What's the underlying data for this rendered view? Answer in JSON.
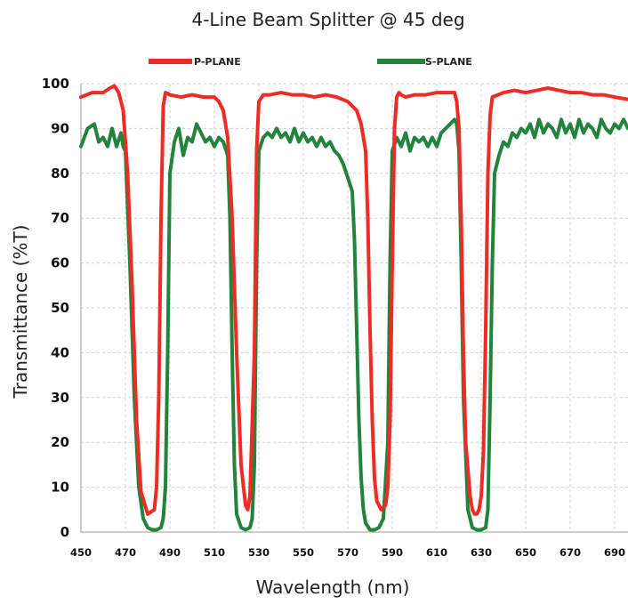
{
  "chart_data": {
    "type": "line",
    "title": "4-Line Beam Splitter @ 45 deg",
    "xlabel": "Wavelength (nm)",
    "ylabel": "Transmittance (%T)",
    "xlim": [
      450,
      696
    ],
    "ylim": [
      0,
      100
    ],
    "x_ticks": [
      450,
      470,
      490,
      510,
      530,
      550,
      570,
      590,
      610,
      630,
      650,
      670,
      690
    ],
    "y_ticks": [
      0,
      10,
      20,
      30,
      40,
      50,
      60,
      70,
      80,
      90,
      100
    ],
    "grid": true,
    "legend_position": "top",
    "series": [
      {
        "name": "P-PLANE",
        "color": "#ee2b24",
        "x": [
          450,
          455,
          460,
          463,
          465,
          467,
          469,
          471,
          473,
          475,
          477,
          480,
          483,
          484,
          485,
          486,
          487,
          488,
          490,
          495,
          500,
          505,
          510,
          512,
          514,
          516,
          518,
          520,
          522,
          524,
          525,
          526,
          528,
          529,
          530,
          532,
          535,
          540,
          545,
          550,
          555,
          560,
          565,
          570,
          574,
          576,
          578,
          579,
          580,
          581,
          582,
          583,
          585,
          587,
          588,
          589,
          590,
          591,
          592,
          593,
          594,
          596,
          600,
          605,
          610,
          615,
          618,
          619,
          620,
          621,
          622,
          623,
          625,
          626,
          627,
          628,
          629,
          630,
          631,
          632,
          633,
          634,
          635,
          640,
          645,
          650,
          655,
          660,
          665,
          670,
          675,
          680,
          685,
          690,
          696
        ],
        "y": [
          97,
          98,
          98,
          99,
          99.5,
          98,
          94,
          80,
          55,
          25,
          9,
          4,
          5,
          10,
          30,
          70,
          95,
          98,
          97.5,
          97,
          97.5,
          97,
          97,
          96,
          94,
          88,
          70,
          40,
          15,
          6,
          5,
          8,
          40,
          85,
          96,
          97.5,
          97.5,
          98,
          97.5,
          97.5,
          97,
          97.5,
          97,
          96,
          94,
          91,
          85,
          70,
          45,
          25,
          12,
          7,
          5,
          6,
          10,
          25,
          60,
          90,
          97,
          98,
          97.5,
          97,
          97.5,
          97.5,
          98,
          98,
          98,
          96,
          90,
          70,
          40,
          20,
          8,
          5,
          4,
          4,
          5,
          8,
          18,
          45,
          80,
          93,
          97,
          98,
          98.5,
          98,
          98.5,
          99,
          98.5,
          98,
          98,
          97.5,
          97.5,
          97,
          96.5
        ]
      },
      {
        "name": "S-PLANE",
        "color": "#22833d",
        "x": [
          450,
          453,
          456,
          458,
          460,
          462,
          464,
          466,
          468,
          469,
          470,
          472,
          474,
          476,
          478,
          480,
          482,
          484,
          486,
          487,
          488,
          489,
          490,
          492,
          494,
          496,
          498,
          500,
          502,
          504,
          506,
          508,
          510,
          512,
          514,
          516,
          517,
          518,
          519,
          520,
          522,
          524,
          526,
          527,
          528,
          529,
          530,
          532,
          534,
          536,
          538,
          540,
          542,
          544,
          546,
          548,
          550,
          552,
          554,
          556,
          558,
          560,
          562,
          564,
          566,
          568,
          570,
          572,
          573,
          574,
          575,
          576,
          577,
          578,
          580,
          582,
          584,
          586,
          588,
          589,
          590,
          592,
          594,
          596,
          598,
          600,
          602,
          604,
          606,
          608,
          610,
          612,
          614,
          616,
          618,
          619,
          620,
          621,
          622,
          624,
          626,
          628,
          630,
          632,
          633,
          634,
          635,
          636,
          638,
          640,
          642,
          644,
          646,
          648,
          650,
          652,
          654,
          656,
          658,
          660,
          662,
          664,
          666,
          668,
          670,
          672,
          674,
          676,
          678,
          680,
          682,
          684,
          686,
          688,
          690,
          692,
          694,
          696
        ],
        "y": [
          86,
          90,
          91,
          87,
          88,
          86,
          90,
          86,
          89,
          86,
          85,
          60,
          30,
          10,
          3,
          1,
          0.5,
          0.5,
          1,
          3,
          10,
          40,
          80,
          87,
          90,
          84,
          88,
          87,
          91,
          89,
          87,
          88,
          86,
          88,
          87,
          84,
          70,
          40,
          15,
          4,
          1,
          0.5,
          1,
          3,
          15,
          60,
          85,
          88,
          89,
          88,
          90,
          88,
          89,
          87,
          90,
          87,
          89,
          87,
          88,
          86,
          88,
          86,
          87,
          85,
          84,
          82,
          79,
          76,
          65,
          45,
          25,
          12,
          5,
          2,
          0.5,
          0.5,
          1,
          3,
          20,
          60,
          85,
          88,
          86,
          89,
          85,
          88,
          87,
          88,
          86,
          88,
          86,
          89,
          90,
          91,
          92,
          91,
          85,
          60,
          30,
          5,
          1,
          0.5,
          0.5,
          1,
          5,
          30,
          60,
          80,
          84,
          87,
          86,
          89,
          88,
          90,
          89,
          91,
          88,
          92,
          89,
          91,
          90,
          88,
          92,
          89,
          91,
          88,
          92,
          89,
          91,
          90,
          88,
          92,
          90,
          89,
          91,
          90,
          92,
          90
        ]
      }
    ]
  }
}
